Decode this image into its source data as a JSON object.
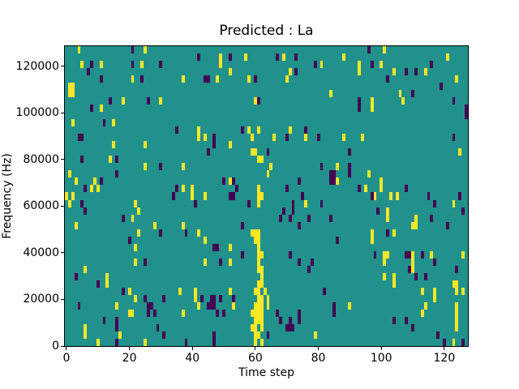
{
  "title": "Predicted : La",
  "axes": {
    "xlabel": "Time step",
    "ylabel": "Frequency (Hz)",
    "x_tick_labels": [
      "0",
      "20",
      "40",
      "60",
      "80",
      "100",
      "120"
    ],
    "y_tick_labels": [
      "0",
      "20000",
      "40000",
      "60000",
      "80000",
      "100000",
      "120000"
    ]
  },
  "chart_data": {
    "type": "heatmap",
    "title": "Predicted : La",
    "xlabel": "Time step",
    "ylabel": "Frequency (Hz)",
    "x_ticks": [
      0,
      20,
      40,
      60,
      80,
      100,
      120
    ],
    "y_ticks": [
      0,
      20000,
      40000,
      60000,
      80000,
      100000,
      120000
    ],
    "x_range": [
      -0.5,
      127.5
    ],
    "y_range": [
      0,
      128535
    ],
    "grid": {
      "cols": 128,
      "rows": 41
    },
    "legend": "none",
    "colormap": "viridis",
    "colors": {
      "low": "#440154",
      "mid": "#21918c",
      "high": "#fde725",
      "spine": "#000000",
      "background": "#ffffff"
    },
    "value_encoding": {
      "low": 0,
      "mid": 0.5,
      "high": 1,
      "note": "cells are [col,row] with row 0 at bottom; all unlisted cells are mid"
    },
    "cells_high": [
      [
        4,
        40
      ],
      [
        25,
        40
      ],
      [
        101,
        40
      ],
      [
        49,
        39
      ],
      [
        57,
        39
      ],
      [
        69,
        39
      ],
      [
        88,
        39
      ],
      [
        121,
        39
      ],
      [
        5,
        38
      ],
      [
        11,
        38
      ],
      [
        24,
        38
      ],
      [
        49,
        38
      ],
      [
        81,
        38
      ],
      [
        93,
        38
      ],
      [
        100,
        38
      ],
      [
        52,
        37
      ],
      [
        71,
        37
      ],
      [
        93,
        37
      ],
      [
        104,
        37
      ],
      [
        114,
        37
      ],
      [
        21,
        36
      ],
      [
        37,
        36
      ],
      [
        48,
        36
      ],
      [
        58,
        36
      ],
      [
        70,
        36
      ],
      [
        124,
        36
      ],
      [
        1,
        35
      ],
      [
        2,
        35
      ],
      [
        1,
        34
      ],
      [
        2,
        34
      ],
      [
        84,
        34
      ],
      [
        106,
        34
      ],
      [
        18,
        33
      ],
      [
        30,
        33
      ],
      [
        60,
        33
      ],
      [
        97,
        33
      ],
      [
        107,
        33
      ],
      [
        11,
        32
      ],
      [
        97,
        32
      ],
      [
        2,
        30
      ],
      [
        15,
        30
      ],
      [
        42,
        29
      ],
      [
        58,
        29
      ],
      [
        61,
        29
      ],
      [
        71,
        29
      ],
      [
        42,
        28
      ],
      [
        44,
        28
      ],
      [
        59,
        28
      ],
      [
        66,
        28
      ],
      [
        76,
        28
      ],
      [
        88,
        28
      ],
      [
        94,
        28
      ],
      [
        15,
        27
      ],
      [
        25,
        27
      ],
      [
        52,
        27
      ],
      [
        59,
        26
      ],
      [
        60,
        26
      ],
      [
        125,
        26
      ],
      [
        14,
        25
      ],
      [
        61,
        25
      ],
      [
        62,
        25
      ],
      [
        25,
        24
      ],
      [
        37,
        24
      ],
      [
        65,
        24
      ],
      [
        86,
        24
      ],
      [
        1,
        23
      ],
      [
        64,
        23
      ],
      [
        96,
        23
      ],
      [
        3,
        22
      ],
      [
        9,
        22
      ],
      [
        52,
        22
      ],
      [
        86,
        22
      ],
      [
        100,
        22
      ],
      [
        8,
        21
      ],
      [
        10,
        21
      ],
      [
        37,
        21
      ],
      [
        40,
        21
      ],
      [
        61,
        21
      ],
      [
        95,
        21
      ],
      [
        100,
        21
      ],
      [
        0,
        20
      ],
      [
        2,
        20
      ],
      [
        40,
        20
      ],
      [
        44,
        20
      ],
      [
        61,
        20
      ],
      [
        62,
        20
      ],
      [
        98,
        20
      ],
      [
        103,
        20
      ],
      [
        105,
        20
      ],
      [
        1,
        19
      ],
      [
        22,
        19
      ],
      [
        61,
        19
      ],
      [
        76,
        19
      ],
      [
        123,
        19
      ],
      [
        23,
        18
      ],
      [
        102,
        18
      ],
      [
        21,
        17
      ],
      [
        102,
        17
      ],
      [
        111,
        17
      ],
      [
        3,
        16
      ],
      [
        28,
        16
      ],
      [
        37,
        16
      ],
      [
        110,
        16
      ],
      [
        111,
        16
      ],
      [
        23,
        15
      ],
      [
        42,
        15
      ],
      [
        59,
        15
      ],
      [
        60,
        15
      ],
      [
        61,
        15
      ],
      [
        97,
        15
      ],
      [
        104,
        15
      ],
      [
        44,
        14
      ],
      [
        60,
        14
      ],
      [
        61,
        14
      ],
      [
        97,
        14
      ],
      [
        22,
        13
      ],
      [
        52,
        13
      ],
      [
        61,
        13
      ],
      [
        61,
        12
      ],
      [
        62,
        12
      ],
      [
        101,
        12
      ],
      [
        102,
        12
      ],
      [
        110,
        12
      ],
      [
        116,
        12
      ],
      [
        126,
        12
      ],
      [
        22,
        11
      ],
      [
        44,
        11
      ],
      [
        52,
        11
      ],
      [
        61,
        11
      ],
      [
        101,
        11
      ],
      [
        110,
        11
      ],
      [
        6,
        10
      ],
      [
        61,
        10
      ],
      [
        62,
        10
      ],
      [
        110,
        10
      ],
      [
        13,
        9
      ],
      [
        62,
        9
      ],
      [
        101,
        9
      ],
      [
        104,
        9
      ],
      [
        13,
        8
      ],
      [
        61,
        8
      ],
      [
        62,
        8
      ],
      [
        104,
        8
      ],
      [
        123,
        8
      ],
      [
        124,
        8
      ],
      [
        20,
        7
      ],
      [
        36,
        7
      ],
      [
        41,
        7
      ],
      [
        52,
        7
      ],
      [
        60,
        7
      ],
      [
        61,
        7
      ],
      [
        63,
        7
      ],
      [
        113,
        7
      ],
      [
        117,
        7
      ],
      [
        124,
        7
      ],
      [
        126,
        7
      ],
      [
        22,
        6
      ],
      [
        41,
        6
      ],
      [
        61,
        6
      ],
      [
        62,
        6
      ],
      [
        64,
        6
      ],
      [
        117,
        6
      ],
      [
        16,
        5
      ],
      [
        42,
        5
      ],
      [
        53,
        5
      ],
      [
        60,
        5
      ],
      [
        61,
        5
      ],
      [
        62,
        5
      ],
      [
        64,
        5
      ],
      [
        90,
        5
      ],
      [
        114,
        5
      ],
      [
        124,
        5
      ],
      [
        20,
        4
      ],
      [
        21,
        4
      ],
      [
        37,
        4
      ],
      [
        59,
        4
      ],
      [
        60,
        4
      ],
      [
        61,
        4
      ],
      [
        62,
        4
      ],
      [
        113,
        4
      ],
      [
        124,
        4
      ],
      [
        60,
        3
      ],
      [
        61,
        3
      ],
      [
        62,
        3
      ],
      [
        124,
        3
      ],
      [
        6,
        2
      ],
      [
        59,
        2
      ],
      [
        60,
        2
      ],
      [
        62,
        2
      ],
      [
        124,
        2
      ],
      [
        6,
        1
      ],
      [
        17,
        1
      ],
      [
        60,
        1
      ],
      [
        61,
        1
      ],
      [
        79,
        1
      ],
      [
        10,
        0
      ],
      [
        25,
        0
      ],
      [
        60,
        0
      ],
      [
        62,
        0
      ],
      [
        123,
        0
      ]
    ],
    "cells_low": [
      [
        21,
        40
      ],
      [
        96,
        40
      ],
      [
        42,
        39
      ],
      [
        52,
        39
      ],
      [
        67,
        39
      ],
      [
        73,
        39
      ],
      [
        8,
        38
      ],
      [
        21,
        38
      ],
      [
        30,
        38
      ],
      [
        79,
        38
      ],
      [
        97,
        38
      ],
      [
        116,
        38
      ],
      [
        7,
        37
      ],
      [
        73,
        37
      ],
      [
        108,
        37
      ],
      [
        111,
        37
      ],
      [
        11,
        36
      ],
      [
        24,
        36
      ],
      [
        44,
        36
      ],
      [
        45,
        36
      ],
      [
        60,
        36
      ],
      [
        102,
        36
      ],
      [
        119,
        35
      ],
      [
        110,
        34
      ],
      [
        14,
        33
      ],
      [
        26,
        33
      ],
      [
        61,
        33
      ],
      [
        93,
        33
      ],
      [
        123,
        33
      ],
      [
        8,
        32
      ],
      [
        93,
        32
      ],
      [
        127,
        32
      ],
      [
        127,
        31
      ],
      [
        12,
        30
      ],
      [
        35,
        29
      ],
      [
        56,
        29
      ],
      [
        76,
        29
      ],
      [
        4,
        28
      ],
      [
        5,
        28
      ],
      [
        47,
        28
      ],
      [
        70,
        28
      ],
      [
        80,
        28
      ],
      [
        123,
        28
      ],
      [
        47,
        27
      ],
      [
        45,
        26
      ],
      [
        64,
        26
      ],
      [
        90,
        26
      ],
      [
        5,
        25
      ],
      [
        16,
        25
      ],
      [
        30,
        24
      ],
      [
        81,
        24
      ],
      [
        90,
        24
      ],
      [
        16,
        23
      ],
      [
        84,
        23
      ],
      [
        85,
        23
      ],
      [
        90,
        23
      ],
      [
        11,
        22
      ],
      [
        50,
        22
      ],
      [
        53,
        22
      ],
      [
        74,
        22
      ],
      [
        84,
        22
      ],
      [
        85,
        22
      ],
      [
        6,
        21
      ],
      [
        35,
        21
      ],
      [
        54,
        21
      ],
      [
        70,
        21
      ],
      [
        93,
        21
      ],
      [
        108,
        21
      ],
      [
        34,
        20
      ],
      [
        52,
        20
      ],
      [
        53,
        20
      ],
      [
        75,
        20
      ],
      [
        97,
        20
      ],
      [
        115,
        20
      ],
      [
        125,
        20
      ],
      [
        5,
        19
      ],
      [
        41,
        19
      ],
      [
        58,
        19
      ],
      [
        72,
        19
      ],
      [
        81,
        19
      ],
      [
        117,
        19
      ],
      [
        6,
        18
      ],
      [
        69,
        18
      ],
      [
        72,
        18
      ],
      [
        99,
        18
      ],
      [
        126,
        18
      ],
      [
        18,
        17
      ],
      [
        68,
        17
      ],
      [
        71,
        17
      ],
      [
        77,
        17
      ],
      [
        84,
        17
      ],
      [
        116,
        17
      ],
      [
        56,
        16
      ],
      [
        74,
        16
      ],
      [
        121,
        16
      ],
      [
        30,
        15
      ],
      [
        38,
        15
      ],
      [
        102,
        15
      ],
      [
        20,
        14
      ],
      [
        86,
        14
      ],
      [
        47,
        13
      ],
      [
        48,
        13
      ],
      [
        56,
        12
      ],
      [
        71,
        12
      ],
      [
        98,
        12
      ],
      [
        108,
        12
      ],
      [
        109,
        12
      ],
      [
        113,
        12
      ],
      [
        25,
        11
      ],
      [
        49,
        11
      ],
      [
        74,
        11
      ],
      [
        78,
        11
      ],
      [
        117,
        11
      ],
      [
        77,
        10
      ],
      [
        109,
        10
      ],
      [
        124,
        10
      ],
      [
        3,
        9
      ],
      [
        111,
        9
      ],
      [
        114,
        9
      ],
      [
        10,
        8
      ],
      [
        18,
        7
      ],
      [
        82,
        7
      ],
      [
        25,
        6
      ],
      [
        31,
        6
      ],
      [
        43,
        6
      ],
      [
        46,
        6
      ],
      [
        47,
        6
      ],
      [
        49,
        6
      ],
      [
        53,
        6
      ],
      [
        4,
        5
      ],
      [
        26,
        5
      ],
      [
        27,
        5
      ],
      [
        45,
        5
      ],
      [
        46,
        5
      ],
      [
        47,
        5
      ],
      [
        85,
        5
      ],
      [
        26,
        4
      ],
      [
        28,
        4
      ],
      [
        48,
        4
      ],
      [
        50,
        4
      ],
      [
        67,
        4
      ],
      [
        74,
        4
      ],
      [
        85,
        4
      ],
      [
        12,
        3
      ],
      [
        16,
        3
      ],
      [
        68,
        3
      ],
      [
        71,
        3
      ],
      [
        74,
        3
      ],
      [
        104,
        3
      ],
      [
        108,
        3
      ],
      [
        16,
        2
      ],
      [
        29,
        2
      ],
      [
        70,
        2
      ],
      [
        71,
        2
      ],
      [
        72,
        2
      ],
      [
        110,
        2
      ],
      [
        31,
        1
      ],
      [
        47,
        1
      ],
      [
        64,
        1
      ],
      [
        118,
        1
      ],
      [
        16,
        0
      ],
      [
        38,
        0
      ],
      [
        47,
        0
      ],
      [
        120,
        0
      ],
      [
        126,
        0
      ]
    ]
  }
}
